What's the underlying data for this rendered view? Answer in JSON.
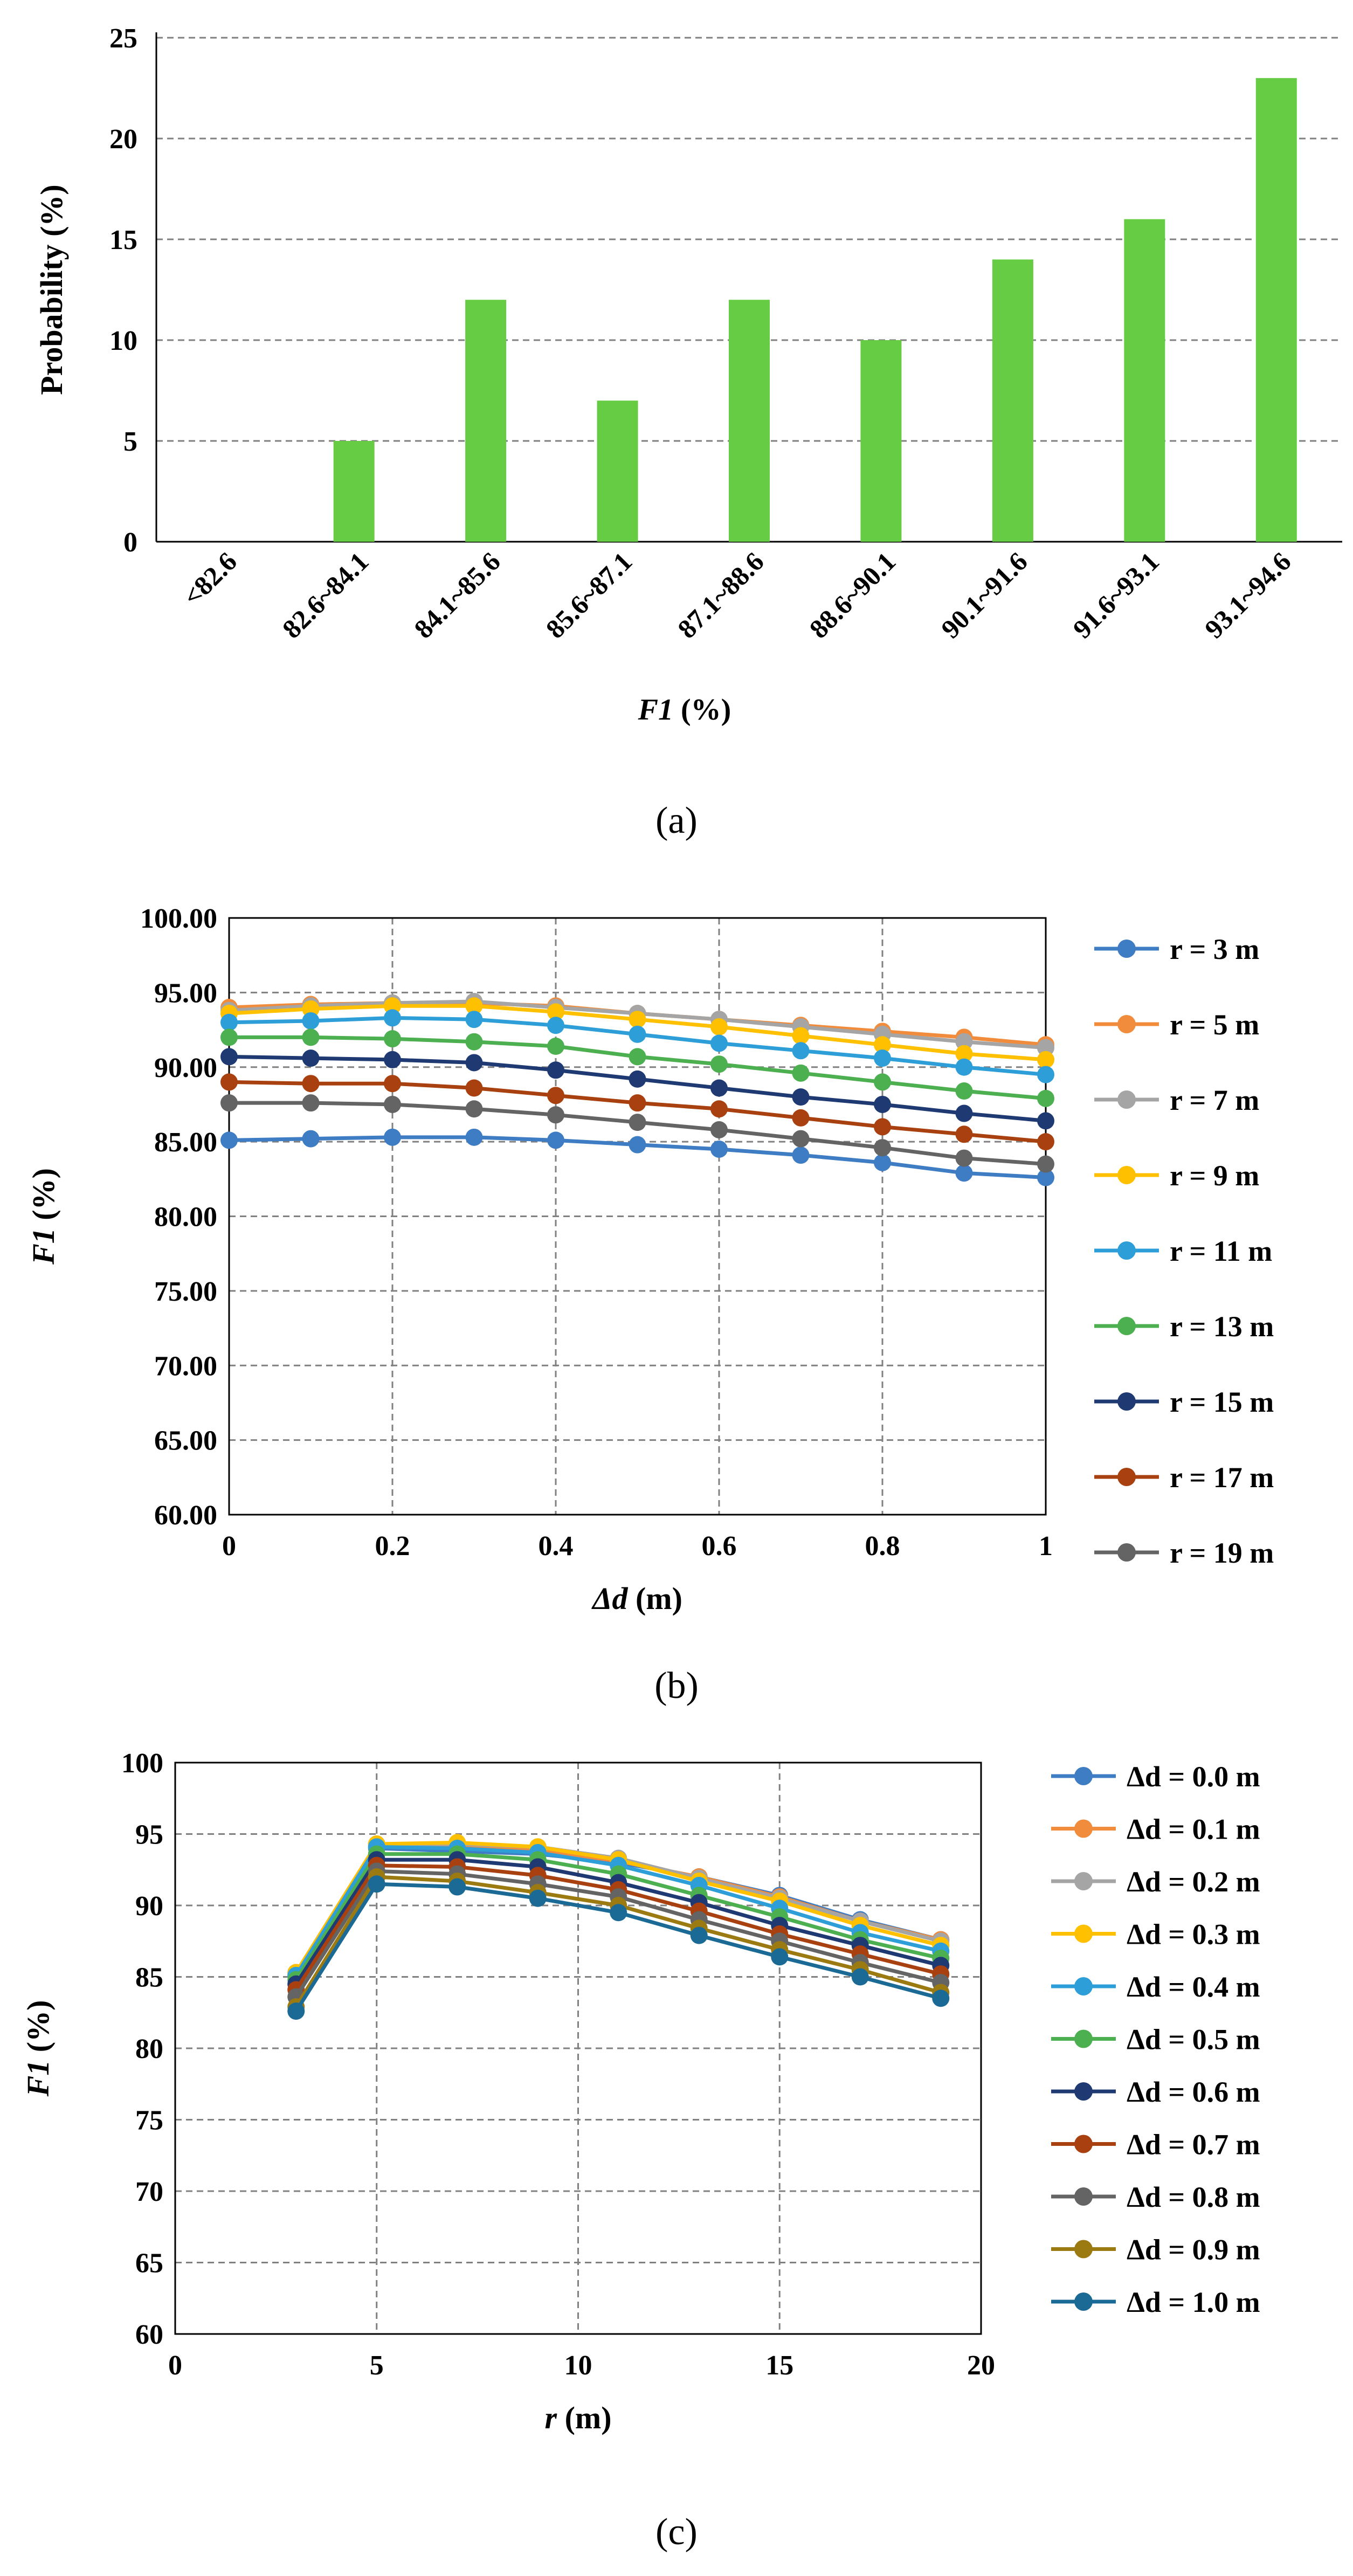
{
  "chart_data": [
    {
      "type": "bar",
      "panel": "(a)",
      "title": "",
      "xlabel": "F1 (%)",
      "xlabel_italic_part": "F1",
      "xlabel_rest": " (%)",
      "ylabel": "Probability (%)",
      "ylim": [
        0,
        25
      ],
      "yticks": [
        "0",
        "5",
        "10",
        "15",
        "20",
        "25"
      ],
      "grid": true,
      "bar_color": "#66CC44",
      "categories": [
        "<82.6",
        "82.6~84.1",
        "84.1~85.6",
        "85.6~87.1",
        "87.1~88.6",
        "88.6~90.1",
        "90.1~91.6",
        "91.6~93.1",
        "93.1~94.6"
      ],
      "values": [
        0,
        5,
        12,
        7,
        12,
        10,
        14,
        16,
        23
      ]
    },
    {
      "type": "line",
      "panel": "(b)",
      "title": "",
      "xlabel": "Δd (m)",
      "xlabel_italic_part": "Δd",
      "xlabel_rest": " (m)",
      "ylabel": "F1 (%)",
      "ylabel_italic_part": "F1",
      "ylabel_rest": " (%)",
      "xlim": [
        0,
        1
      ],
      "ylim": [
        60,
        100
      ],
      "xticks": [
        "0",
        "0.2",
        "0.4",
        "0.6",
        "0.8",
        "1"
      ],
      "yticks": [
        "60.00",
        "65.00",
        "70.00",
        "75.00",
        "80.00",
        "85.00",
        "90.00",
        "95.00",
        "100.00"
      ],
      "grid": true,
      "legend_position": "right",
      "x": [
        0,
        0.1,
        0.2,
        0.3,
        0.4,
        0.5,
        0.6,
        0.7,
        0.8,
        0.9,
        1.0
      ],
      "series": [
        {
          "name": "r = 3 m",
          "color": "#3E7CC4",
          "values": [
            85.1,
            85.2,
            85.3,
            85.3,
            85.1,
            84.8,
            84.5,
            84.1,
            83.6,
            82.9,
            82.6
          ]
        },
        {
          "name": "r = 5 m",
          "color": "#F08C3C",
          "values": [
            94.0,
            94.2,
            94.3,
            94.3,
            94.1,
            93.6,
            93.2,
            92.8,
            92.4,
            92.0,
            91.5
          ]
        },
        {
          "name": "r = 7 m",
          "color": "#A5A5A5",
          "values": [
            93.8,
            94.1,
            94.3,
            94.4,
            94.0,
            93.6,
            93.2,
            92.7,
            92.2,
            91.7,
            91.3
          ]
        },
        {
          "name": "r = 9 m",
          "color": "#FFC000",
          "values": [
            93.6,
            93.9,
            94.1,
            94.1,
            93.7,
            93.2,
            92.7,
            92.1,
            91.5,
            90.9,
            90.5
          ]
        },
        {
          "name": "r = 11 m",
          "color": "#2E9ED8",
          "values": [
            93.0,
            93.1,
            93.3,
            93.2,
            92.8,
            92.2,
            91.6,
            91.1,
            90.6,
            90.0,
            89.5
          ]
        },
        {
          "name": "r = 13 m",
          "color": "#4CAF50",
          "values": [
            92.0,
            92.0,
            91.9,
            91.7,
            91.4,
            90.7,
            90.2,
            89.6,
            89.0,
            88.4,
            87.9
          ]
        },
        {
          "name": "r = 15 m",
          "color": "#1F3A73",
          "values": [
            90.7,
            90.6,
            90.5,
            90.3,
            89.8,
            89.2,
            88.6,
            88.0,
            87.5,
            86.9,
            86.4
          ]
        },
        {
          "name": "r = 17 m",
          "color": "#A8410F",
          "values": [
            89.0,
            88.9,
            88.9,
            88.6,
            88.1,
            87.6,
            87.2,
            86.6,
            86.0,
            85.5,
            85.0
          ]
        },
        {
          "name": "r = 19 m",
          "color": "#646464",
          "values": [
            87.6,
            87.6,
            87.5,
            87.2,
            86.8,
            86.3,
            85.8,
            85.2,
            84.6,
            83.9,
            83.5
          ]
        }
      ]
    },
    {
      "type": "line",
      "panel": "(c)",
      "title": "",
      "xlabel": "r (m)",
      "xlabel_italic_part": "r",
      "xlabel_rest": " (m)",
      "ylabel": "F1 (%)",
      "ylabel_italic_part": "F1",
      "ylabel_rest": " (%)",
      "xlim": [
        0,
        20
      ],
      "ylim": [
        60,
        100
      ],
      "xticks": [
        "0",
        "5",
        "10",
        "15",
        "20"
      ],
      "yticks": [
        "60",
        "65",
        "70",
        "75",
        "80",
        "85",
        "90",
        "95",
        "100"
      ],
      "grid": true,
      "legend_position": "right",
      "x": [
        3,
        5,
        7,
        9,
        11,
        13,
        15,
        17,
        19
      ],
      "series": [
        {
          "name": "Δd = 0.0 m",
          "color": "#3E7CC4",
          "values": [
            85.1,
            94.0,
            93.8,
            93.6,
            93.0,
            92.0,
            90.7,
            89.0,
            87.6
          ]
        },
        {
          "name": "Δd = 0.1 m",
          "color": "#F08C3C",
          "values": [
            85.2,
            94.2,
            94.1,
            93.9,
            93.1,
            92.0,
            90.6,
            88.9,
            87.6
          ]
        },
        {
          "name": "Δd = 0.2 m",
          "color": "#A5A5A5",
          "values": [
            85.3,
            94.3,
            94.3,
            94.1,
            93.3,
            91.9,
            90.5,
            88.9,
            87.5
          ]
        },
        {
          "name": "Δd = 0.3 m",
          "color": "#FFC000",
          "values": [
            85.3,
            94.3,
            94.4,
            94.1,
            93.2,
            91.7,
            90.3,
            88.6,
            87.2
          ]
        },
        {
          "name": "Δd = 0.4 m",
          "color": "#2E9ED8",
          "values": [
            85.1,
            94.1,
            94.0,
            93.7,
            92.8,
            91.4,
            89.8,
            88.1,
            86.8
          ]
        },
        {
          "name": "Δd = 0.5 m",
          "color": "#4CAF50",
          "values": [
            84.8,
            93.6,
            93.6,
            93.2,
            92.2,
            90.7,
            89.2,
            87.6,
            86.3
          ]
        },
        {
          "name": "Δd = 0.6 m",
          "color": "#1F3A73",
          "values": [
            84.5,
            93.2,
            93.2,
            92.7,
            91.6,
            90.2,
            88.6,
            87.2,
            85.8
          ]
        },
        {
          "name": "Δd = 0.7 m",
          "color": "#A8410F",
          "values": [
            84.1,
            92.8,
            92.7,
            92.1,
            91.1,
            89.6,
            88.0,
            86.6,
            85.2
          ]
        },
        {
          "name": "Δd = 0.8 m",
          "color": "#646464",
          "values": [
            83.6,
            92.4,
            92.2,
            91.5,
            90.6,
            89.0,
            87.5,
            86.0,
            84.6
          ]
        },
        {
          "name": "Δd = 0.9 m",
          "color": "#9C7A12",
          "values": [
            82.9,
            92.0,
            91.7,
            90.9,
            90.0,
            88.4,
            86.9,
            85.5,
            83.9
          ]
        },
        {
          "name": "Δd = 1.0 m",
          "color": "#1B6A96",
          "values": [
            82.6,
            91.5,
            91.3,
            90.5,
            89.5,
            87.9,
            86.4,
            85.0,
            83.5
          ]
        }
      ]
    }
  ]
}
